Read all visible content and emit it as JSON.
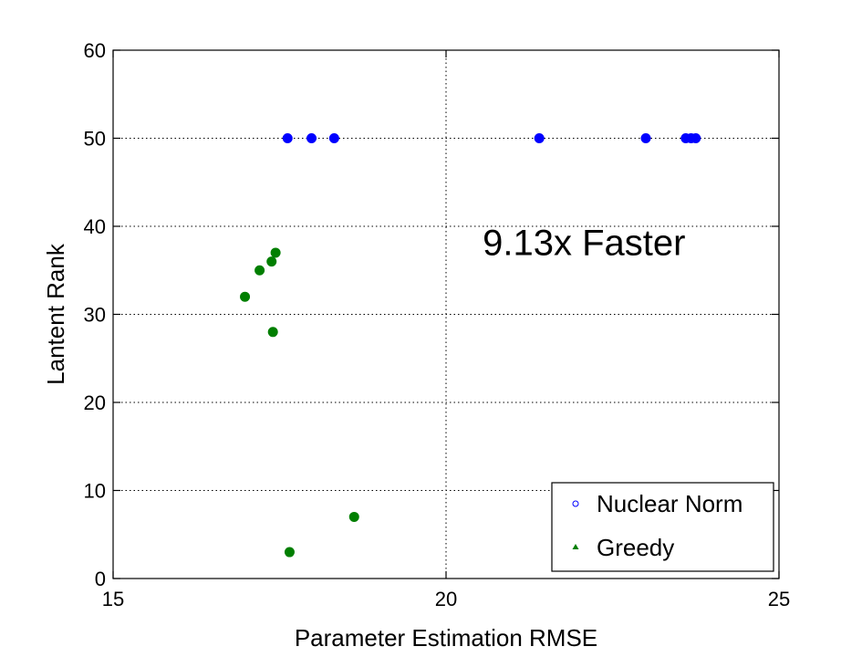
{
  "chart_data": {
    "type": "scatter",
    "title": "",
    "xlabel": "Parameter Estimation RMSE",
    "ylabel": "Lantent Rank",
    "xlim": [
      15,
      25
    ],
    "ylim": [
      0,
      60
    ],
    "xticks": [
      15,
      20,
      25
    ],
    "yticks": [
      0,
      10,
      20,
      30,
      40,
      50,
      60
    ],
    "grid": "dotted",
    "legend_position": "bottom-right",
    "annotation": "9.13x Faster",
    "series": [
      {
        "name": "Nuclear Norm",
        "color": "#0000ff",
        "marker": "circle",
        "points": [
          {
            "x": 17.62,
            "y": 50
          },
          {
            "x": 17.98,
            "y": 50
          },
          {
            "x": 18.32,
            "y": 50
          },
          {
            "x": 21.4,
            "y": 50
          },
          {
            "x": 23.0,
            "y": 50
          },
          {
            "x": 23.6,
            "y": 50
          },
          {
            "x": 23.68,
            "y": 50
          },
          {
            "x": 23.75,
            "y": 50
          }
        ]
      },
      {
        "name": "Greedy",
        "color": "#007f00",
        "marker": "triangle",
        "points": [
          {
            "x": 16.98,
            "y": 32
          },
          {
            "x": 17.2,
            "y": 35
          },
          {
            "x": 17.38,
            "y": 36
          },
          {
            "x": 17.44,
            "y": 37
          },
          {
            "x": 17.4,
            "y": 28
          },
          {
            "x": 18.62,
            "y": 7
          },
          {
            "x": 17.65,
            "y": 3
          }
        ]
      }
    ]
  }
}
